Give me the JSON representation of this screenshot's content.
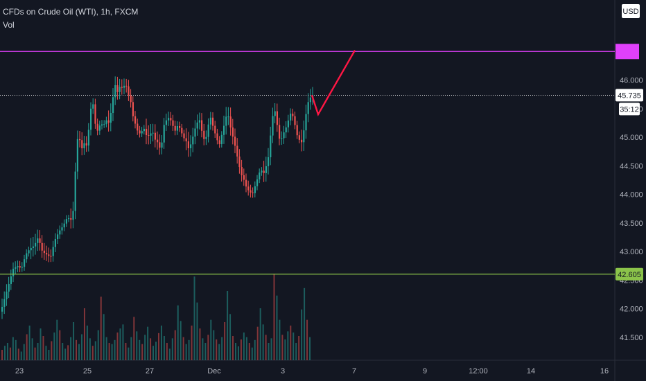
{
  "header": {
    "title": "CFDs on Crude Oil (WTI), 1h, FXCM",
    "indicator": "Vol"
  },
  "colors": {
    "background": "#131722",
    "up": "#26a69a",
    "down": "#ef5350",
    "resistance": "#e040fb",
    "support": "#8bc34a",
    "projection": "#ff1744",
    "price_line": "#ffffff",
    "axis_text": "#b2b5be",
    "border": "#2a2e39"
  },
  "chart_data": {
    "type": "candlestick",
    "symbol": "CFDs on Crude Oil (WTI)",
    "interval": "1h",
    "source": "FXCM",
    "currency": "USD",
    "ylim": [
      41.1,
      47.4
    ],
    "y_ticks": [
      "46.000",
      "45.500",
      "45.000",
      "44.500",
      "44.000",
      "43.500",
      "43.000",
      "42.500",
      "42.000",
      "41.500"
    ],
    "x_ticks": [
      "23",
      "25",
      "27",
      "Dec",
      "3",
      "7",
      "9",
      "12:00",
      "14",
      "16"
    ],
    "resistance_price": 46.5,
    "support_price": 42.605,
    "support_label": "42.605",
    "last_price": 45.735,
    "last_price_label": "45.735",
    "countdown_label": "35:12",
    "price_path": [
      [
        0,
        41.95
      ],
      [
        6,
        42.2
      ],
      [
        12,
        42.45
      ],
      [
        18,
        42.7
      ],
      [
        24,
        42.75
      ],
      [
        30,
        42.7
      ],
      [
        36,
        42.95
      ],
      [
        42,
        43.05
      ],
      [
        48,
        43.1
      ],
      [
        54,
        43.25
      ],
      [
        60,
        43.0
      ],
      [
        66,
        42.95
      ],
      [
        72,
        42.9
      ],
      [
        78,
        43.2
      ],
      [
        84,
        43.35
      ],
      [
        90,
        43.45
      ],
      [
        96,
        43.6
      ],
      [
        102,
        43.55
      ],
      [
        105,
        43.75
      ],
      [
        108,
        44.5
      ],
      [
        111,
        45.0
      ],
      [
        114,
        44.95
      ],
      [
        117,
        44.8
      ],
      [
        120,
        44.9
      ],
      [
        124,
        44.85
      ],
      [
        127,
        45.15
      ],
      [
        130,
        45.5
      ],
      [
        133,
        45.6
      ],
      [
        136,
        45.25
      ],
      [
        140,
        45.1
      ],
      [
        144,
        45.25
      ],
      [
        148,
        45.2
      ],
      [
        152,
        45.3
      ],
      [
        156,
        45.25
      ],
      [
        160,
        45.5
      ],
      [
        163,
        45.8
      ],
      [
        166,
        45.95
      ],
      [
        169,
        45.75
      ],
      [
        172,
        45.9
      ],
      [
        176,
        45.85
      ],
      [
        180,
        45.95
      ],
      [
        184,
        45.75
      ],
      [
        188,
        45.6
      ],
      [
        191,
        45.35
      ],
      [
        195,
        45.2
      ],
      [
        199,
        45.05
      ],
      [
        203,
        45.1
      ],
      [
        207,
        45.15
      ],
      [
        211,
        45.0
      ],
      [
        215,
        45.05
      ],
      [
        219,
        45.1
      ],
      [
        223,
        44.95
      ],
      [
        227,
        44.9
      ],
      [
        231,
        44.75
      ],
      [
        235,
        45.2
      ],
      [
        239,
        45.3
      ],
      [
        243,
        45.35
      ],
      [
        247,
        45.25
      ],
      [
        251,
        45.1
      ],
      [
        255,
        45.2
      ],
      [
        259,
        45.15
      ],
      [
        263,
        45.0
      ],
      [
        267,
        44.95
      ],
      [
        271,
        44.8
      ],
      [
        275,
        44.9
      ],
      [
        279,
        45.1
      ],
      [
        283,
        45.25
      ],
      [
        287,
        45.3
      ],
      [
        291,
        45.05
      ],
      [
        295,
        44.9
      ],
      [
        299,
        45.2
      ],
      [
        303,
        45.35
      ],
      [
        307,
        45.15
      ],
      [
        311,
        45.0
      ],
      [
        315,
        44.85
      ],
      [
        319,
        45.05
      ],
      [
        323,
        45.25
      ],
      [
        327,
        45.45
      ],
      [
        331,
        45.2
      ],
      [
        335,
        45.0
      ],
      [
        339,
        44.8
      ],
      [
        343,
        44.55
      ],
      [
        347,
        44.35
      ],
      [
        351,
        44.25
      ],
      [
        355,
        44.1
      ],
      [
        359,
        44.05
      ],
      [
        363,
        44.0
      ],
      [
        367,
        44.15
      ],
      [
        371,
        44.3
      ],
      [
        375,
        44.45
      ],
      [
        379,
        44.35
      ],
      [
        383,
        44.5
      ],
      [
        387,
        44.7
      ],
      [
        391,
        45.3
      ],
      [
        395,
        45.5
      ],
      [
        399,
        45.2
      ],
      [
        403,
        44.9
      ],
      [
        407,
        45.05
      ],
      [
        411,
        45.15
      ],
      [
        415,
        45.3
      ],
      [
        419,
        45.45
      ],
      [
        423,
        45.3
      ],
      [
        427,
        45.05
      ],
      [
        431,
        44.95
      ],
      [
        435,
        44.9
      ],
      [
        439,
        45.3
      ],
      [
        443,
        45.6
      ],
      [
        447,
        45.7
      ],
      [
        450,
        45.735
      ]
    ],
    "volume": [
      18,
      25,
      30,
      22,
      40,
      35,
      20,
      15,
      28,
      45,
      60,
      38,
      22,
      30,
      55,
      42,
      25,
      18,
      33,
      48,
      70,
      52,
      30,
      20,
      26,
      40,
      66,
      35,
      28,
      45,
      90,
      60,
      38,
      25,
      33,
      52,
      110,
      80,
      40,
      30,
      28,
      35,
      48,
      55,
      62,
      30,
      22,
      40,
      75,
      50,
      35,
      28,
      44,
      58,
      38,
      25,
      32,
      47,
      60,
      42,
      30,
      20,
      38,
      52,
      95,
      68,
      40,
      28,
      35,
      60,
      145,
      100,
      55,
      38,
      30,
      44,
      70,
      52,
      36,
      28,
      40,
      66,
      120,
      80,
      42,
      30,
      24,
      36,
      48,
      40,
      30,
      22,
      35,
      58,
      90,
      62,
      44,
      30,
      38,
      150,
      112,
      70,
      44,
      36,
      50,
      60,
      48,
      30,
      42,
      88,
      125,
      70,
      40
    ]
  },
  "projection": [
    [
      450,
      45.735
    ],
    [
      459,
      45.4
    ],
    [
      512,
      46.52
    ]
  ]
}
